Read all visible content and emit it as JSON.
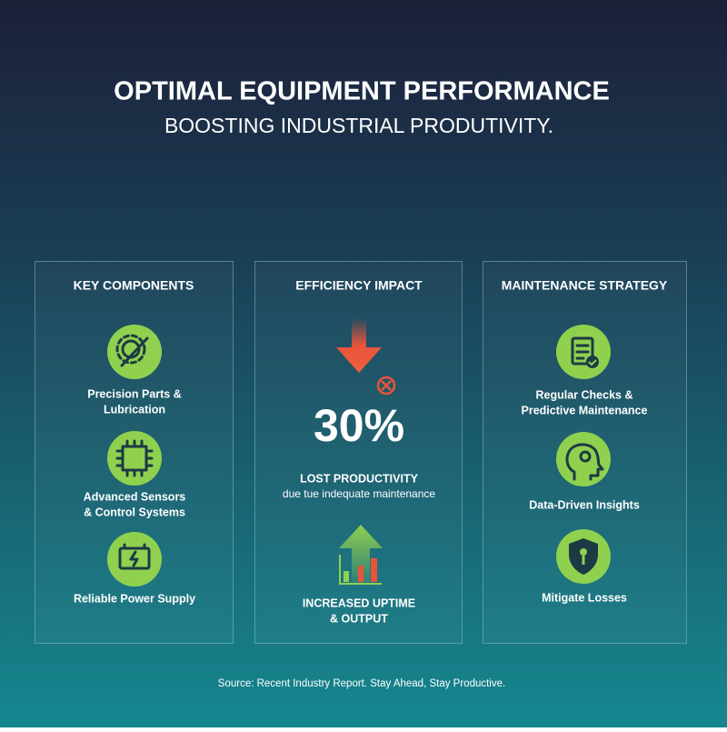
{
  "header": {
    "title": "OPTIMAL EQUIPMENT PERFORMANCE",
    "subtitle": "BOOSTING INDUSTRIAL PRODUTIVITY."
  },
  "panels": [
    {
      "title": "KEY COMPONENTS",
      "items": [
        {
          "lines": [
            "Precision Parts &",
            "Lubrication"
          ]
        },
        {
          "lines": [
            "Advanced Sensors",
            "& Control Systems"
          ]
        },
        {
          "lines": [
            "Reliable Power Supply"
          ]
        }
      ]
    },
    {
      "title": "EFFICIENCY IMPACT",
      "stat": "30%",
      "stat_label": "LOST PRODUCTIVITY",
      "stat_note": "due tue indequate maintenance",
      "outcome": {
        "lines": [
          "INCREASED UPTIME",
          "& OUTPUT"
        ]
      }
    },
    {
      "title": "MAINTENANCE STRATEGY",
      "items": [
        {
          "lines": [
            "Regular Checks &",
            "Predictive Maintenance"
          ]
        },
        {
          "lines": [
            "Data-Driven Insights"
          ]
        },
        {
          "lines": [
            "Mitigate Losses"
          ]
        }
      ]
    }
  ],
  "footer": "Source: Recent Industry Report. Stay Ahead, Stay Productive."
}
